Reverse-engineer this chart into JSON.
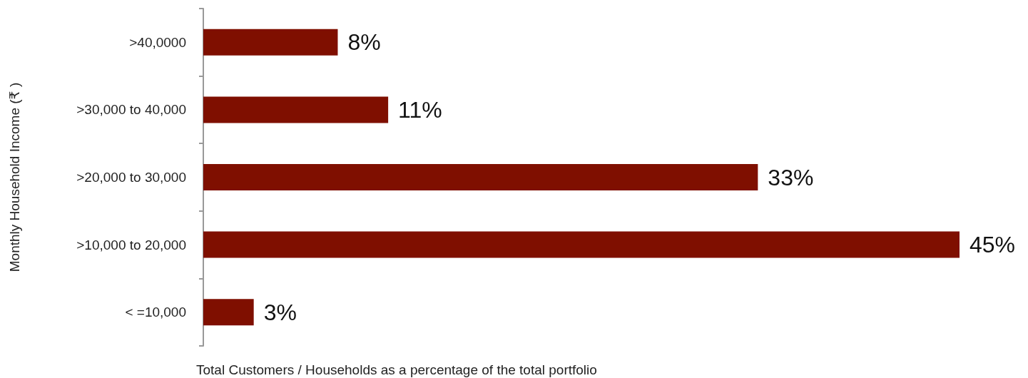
{
  "chart_data": {
    "type": "bar",
    "orientation": "horizontal",
    "categories": [
      ">40,0000",
      ">30,000 to 40,000",
      ">20,000 to 30,000",
      ">10,000 to 20,000",
      "< =10,000"
    ],
    "values": [
      8,
      11,
      33,
      45,
      3
    ],
    "value_labels": [
      "8%",
      "11%",
      "33%",
      "45%",
      "3%"
    ],
    "color": "#7f0f00",
    "xlabel": "Total Customers / Households as a percentage of the total portfolio",
    "ylabel": "Monthly Household Income (₹ )"
  }
}
